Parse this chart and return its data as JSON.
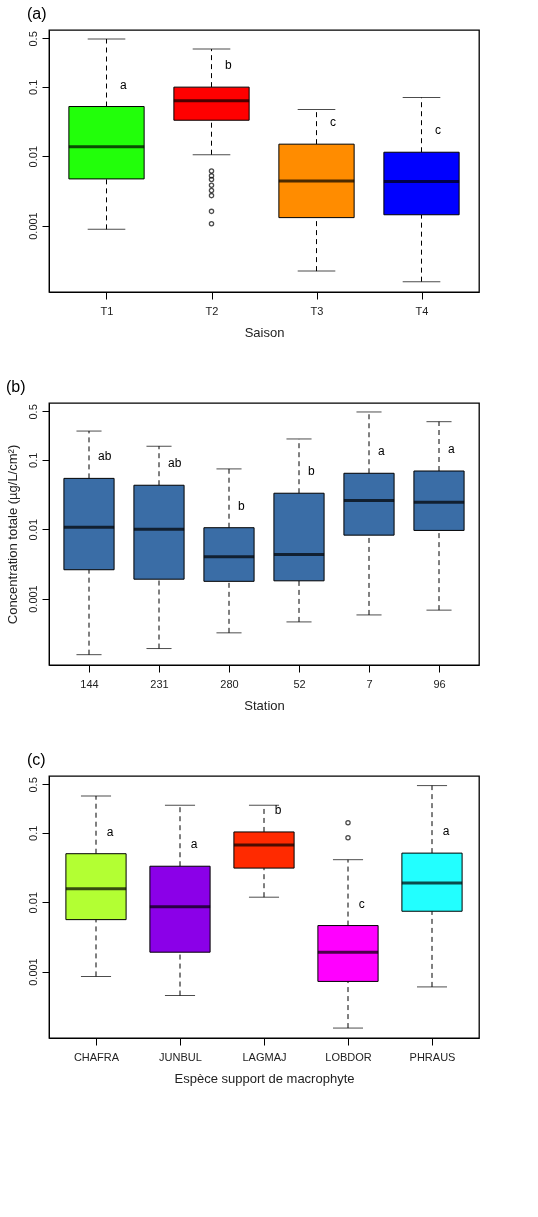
{
  "chart_data": [
    {
      "type": "box",
      "title": "(a)",
      "xlabel": "Saison",
      "categories": [
        "T1",
        "T2",
        "T3",
        "T4"
      ],
      "colors": [
        "#22ff0a",
        "#ff0000",
        "#ff8c00",
        "#0000ff"
      ],
      "boxes": [
        {
          "low": 0.00088,
          "q1": 0.0047,
          "median": 0.0137,
          "q3": 0.052,
          "high": 0.49
        },
        {
          "low": 0.0105,
          "q1": 0.033,
          "median": 0.063,
          "q3": 0.099,
          "high": 0.35,
          "outliers": [
            0.0061,
            0.0052,
            0.0046,
            0.0038,
            0.0032,
            0.0027,
            0.0016,
            0.00106
          ]
        },
        {
          "low": 0.00022,
          "q1": 0.0013,
          "median": 0.0044,
          "q3": 0.0149,
          "high": 0.047
        },
        {
          "low": 0.000155,
          "q1": 0.00143,
          "median": 0.0043,
          "q3": 0.0114,
          "high": 0.07
        }
      ],
      "ylim": [
        0.00011,
        0.66
      ],
      "yticks": [
        0.001,
        0.01,
        0.1,
        0.5
      ],
      "grid": false,
      "log": "y",
      "annotations": [
        "a",
        "b",
        "c",
        "c"
      ]
    },
    {
      "type": "box",
      "title": "(b)",
      "xlabel": "Station",
      "ylabel": "Concentration totale (µg/L/cm²)",
      "categories": [
        "144",
        "231",
        "280",
        "52",
        "7",
        "96"
      ],
      "colors": [
        "#3a6da6",
        "#3a6da6",
        "#3a6da6",
        "#3a6da6",
        "#3a6da6",
        "#3a6da6"
      ],
      "boxes": [
        {
          "low": 0.000155,
          "q1": 0.0026,
          "median": 0.0107,
          "q3": 0.054,
          "high": 0.26
        },
        {
          "low": 0.00019,
          "q1": 0.0019,
          "median": 0.01,
          "q3": 0.043,
          "high": 0.157
        },
        {
          "low": 0.00032,
          "q1": 0.00177,
          "median": 0.004,
          "q3": 0.0105,
          "high": 0.074
        },
        {
          "low": 0.00046,
          "q1": 0.0018,
          "median": 0.0043,
          "q3": 0.033,
          "high": 0.2
        },
        {
          "low": 0.00058,
          "q1": 0.0082,
          "median": 0.026,
          "q3": 0.064,
          "high": 0.49
        },
        {
          "low": 0.00068,
          "q1": 0.0096,
          "median": 0.0245,
          "q3": 0.069,
          "high": 0.355
        }
      ],
      "ylim": [
        0.00011,
        0.66
      ],
      "yticks": [
        0.001,
        0.01,
        0.1,
        0.5
      ],
      "grid": false,
      "log": "y",
      "annotations": [
        "ab",
        "ab",
        "b",
        "b",
        "a",
        "a"
      ]
    },
    {
      "type": "box",
      "title": "(c)",
      "xlabel": "Espèce support de macrophyte",
      "categories": [
        "CHAFRA",
        "JUNBUL",
        "LAGMAJ",
        "LOBDOR",
        "PHRAUS"
      ],
      "colors": [
        "#b3ff33",
        "#8b00e8",
        "#ff2a00",
        "#ff00ff",
        "#22ffff"
      ],
      "boxes": [
        {
          "low": 0.00085,
          "q1": 0.0056,
          "median": 0.0156,
          "q3": 0.05,
          "high": 0.34
        },
        {
          "low": 0.00045,
          "q1": 0.0019,
          "median": 0.0086,
          "q3": 0.033,
          "high": 0.25
        },
        {
          "low": 0.0118,
          "q1": 0.031,
          "median": 0.067,
          "q3": 0.103,
          "high": 0.25
        },
        {
          "low": 0.000153,
          "q1": 0.00072,
          "median": 0.0019,
          "q3": 0.0046,
          "high": 0.041,
          "outliers": [
            0.14,
            0.085
          ]
        },
        {
          "low": 0.0006,
          "q1": 0.0074,
          "median": 0.0189,
          "q3": 0.051,
          "high": 0.48
        }
      ],
      "ylim": [
        0.00011,
        0.66
      ],
      "yticks": [
        0.001,
        0.01,
        0.1,
        0.5
      ],
      "grid": false,
      "log": "y",
      "annotations": [
        "a",
        "a",
        "b",
        "c",
        "a"
      ]
    }
  ]
}
